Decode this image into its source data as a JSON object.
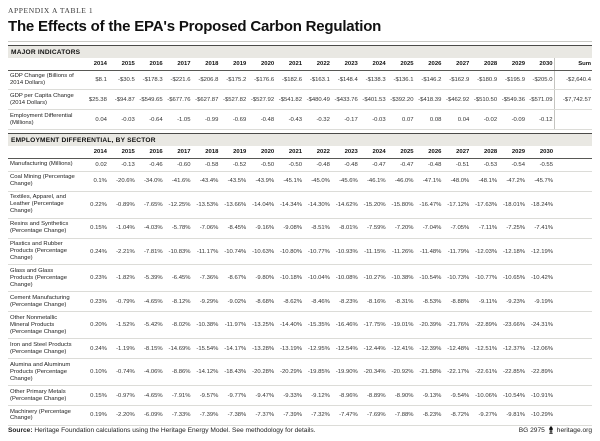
{
  "header": {
    "kicker": "APPENDIX A TABLE 1",
    "title": "The Effects of the EPA's Proposed Carbon Regulation"
  },
  "major_indicators": {
    "section_title": "MAJOR INDICATORS",
    "years": [
      "2014",
      "2015",
      "2016",
      "2017",
      "2018",
      "2019",
      "2020",
      "2021",
      "2022",
      "2023",
      "2024",
      "2025",
      "2026",
      "2027",
      "2028",
      "2029",
      "2030"
    ],
    "sum_label": "Sum",
    "rows": [
      {
        "label": "GDP Change (Billions of 2014 Dollars)",
        "values": [
          "$8.1",
          "-$30.5",
          "-$178.3",
          "-$221.6",
          "-$206.8",
          "-$175.2",
          "-$176.6",
          "-$182.6",
          "-$163.1",
          "-$148.4",
          "-$138.3",
          "-$136.1",
          "-$146.2",
          "-$162.9",
          "-$180.9",
          "-$195.9",
          "-$205.0"
        ],
        "sum": "-$2,640.4"
      },
      {
        "label": "GDP per Capita Change (2014 Dollars)",
        "values": [
          "$25.38",
          "-$94.87",
          "-$549.65",
          "-$677.76",
          "-$627.87",
          "-$527.82",
          "-$527.92",
          "-$541.82",
          "-$480.49",
          "-$433.76",
          "-$401.53",
          "-$392.20",
          "-$418.39",
          "-$462.92",
          "-$510.50",
          "-$549.36",
          "-$571.09"
        ],
        "sum": "-$7,742.57"
      },
      {
        "label": "Employment Differential (Millions)",
        "values": [
          "0.04",
          "-0.03",
          "-0.64",
          "-1.05",
          "-0.99",
          "-0.69",
          "-0.48",
          "-0.43",
          "-0.32",
          "-0.17",
          "-0.03",
          "0.07",
          "0.08",
          "0.04",
          "-0.02",
          "-0.09",
          "-0.12"
        ],
        "sum": ""
      }
    ]
  },
  "sector_section": {
    "section_title": "EMPLOYMENT DIFFERENTIAL, BY SECTOR",
    "years": [
      "2014",
      "2015",
      "2016",
      "2017",
      "2018",
      "2019",
      "2020",
      "2021",
      "2022",
      "2023",
      "2024",
      "2025",
      "2026",
      "2027",
      "2028",
      "2029",
      "2030"
    ],
    "sum_label": "",
    "rows": [
      {
        "label": "Manufacturing (Millions)",
        "values": [
          "0.02",
          "-0.13",
          "-0.46",
          "-0.60",
          "-0.58",
          "-0.52",
          "-0.50",
          "-0.50",
          "-0.48",
          "-0.48",
          "-0.47",
          "-0.47",
          "-0.48",
          "-0.51",
          "-0.53",
          "-0.54",
          "-0.55"
        ]
      },
      {
        "label": "Coal Mining (Percentage Change)",
        "values": [
          "0.1%",
          "-20.6%",
          "-34.0%",
          "-41.6%",
          "-43.4%",
          "-43.5%",
          "-43.9%",
          "-45.1%",
          "-45.0%",
          "-45.6%",
          "-46.1%",
          "-46.0%",
          "-47.1%",
          "-48.0%",
          "-48.1%",
          "-47.2%",
          "-45.7%"
        ]
      },
      {
        "label": "Textiles, Apparel, and Leather (Percentage Change)",
        "values": [
          "0.22%",
          "-0.89%",
          "-7.65%",
          "-12.25%",
          "-13.53%",
          "-13.66%",
          "-14.04%",
          "-14.34%",
          "-14.30%",
          "-14.62%",
          "-15.20%",
          "-15.80%",
          "-16.47%",
          "-17.12%",
          "-17.63%",
          "-18.01%",
          "-18.24%"
        ]
      },
      {
        "label": "Resins and Synthetics (Percentage Change)",
        "values": [
          "0.15%",
          "-1.04%",
          "-4.03%",
          "-5.78%",
          "-7.06%",
          "-8.45%",
          "-9.16%",
          "-9.08%",
          "-8.51%",
          "-8.01%",
          "-7.59%",
          "-7.20%",
          "-7.04%",
          "-7.05%",
          "-7.11%",
          "-7.25%",
          "-7.41%"
        ]
      },
      {
        "label": "Plastics and Rubber Products (Percentage Change)",
        "values": [
          "0.24%",
          "-2.21%",
          "-7.81%",
          "-10.83%",
          "-11.17%",
          "-10.74%",
          "-10.63%",
          "-10.80%",
          "-10.77%",
          "-10.93%",
          "-11.15%",
          "-11.26%",
          "-11.48%",
          "-11.79%",
          "-12.03%",
          "-12.18%",
          "-12.19%"
        ]
      },
      {
        "label": "Glass and Glass Products (Percentage Change)",
        "values": [
          "0.23%",
          "-1.82%",
          "-5.39%",
          "-6.45%",
          "-7.36%",
          "-8.67%",
          "-9.80%",
          "-10.18%",
          "-10.04%",
          "-10.08%",
          "-10.27%",
          "-10.38%",
          "-10.54%",
          "-10.73%",
          "-10.77%",
          "-10.65%",
          "-10.42%"
        ]
      },
      {
        "label": "Cement Manufacturing (Percentage Change)",
        "values": [
          "0.23%",
          "-0.79%",
          "-4.65%",
          "-8.12%",
          "-9.29%",
          "-9.02%",
          "-8.68%",
          "-8.62%",
          "-8.46%",
          "-8.23%",
          "-8.16%",
          "-8.31%",
          "-8.53%",
          "-8.88%",
          "-9.11%",
          "-9.23%",
          "-9.19%"
        ]
      },
      {
        "label": "Other Nonmetallic Mineral Products (Percentage Change)",
        "values": [
          "0.20%",
          "-1.52%",
          "-5.42%",
          "-8.02%",
          "-10.38%",
          "-11.97%",
          "-13.25%",
          "-14.40%",
          "-15.35%",
          "-16.46%",
          "-17.75%",
          "-19.01%",
          "-20.39%",
          "-21.76%",
          "-22.89%",
          "-23.66%",
          "-24.31%"
        ]
      },
      {
        "label": "Iron and Steel Products (Percentage Change)",
        "values": [
          "0.24%",
          "-1.19%",
          "-8.15%",
          "-14.69%",
          "-15.54%",
          "-14.17%",
          "-13.28%",
          "-13.19%",
          "-12.95%",
          "-12.54%",
          "-12.44%",
          "-12.41%",
          "-12.39%",
          "-12.48%",
          "-12.51%",
          "-12.37%",
          "-12.06%"
        ]
      },
      {
        "label": "Alumina and Aluminum Products (Percentage Change)",
        "values": [
          "0.10%",
          "-0.74%",
          "-4.06%",
          "-8.86%",
          "-14.12%",
          "-18.43%",
          "-20.28%",
          "-20.29%",
          "-19.85%",
          "-19.90%",
          "-20.34%",
          "-20.92%",
          "-21.58%",
          "-22.17%",
          "-22.61%",
          "-22.85%",
          "-22.89%"
        ]
      },
      {
        "label": "Other Primary Metals (Percentage Change)",
        "values": [
          "0.15%",
          "-0.97%",
          "-4.65%",
          "-7.91%",
          "-9.57%",
          "-9.77%",
          "-9.47%",
          "-9.33%",
          "-9.12%",
          "-8.96%",
          "-8.89%",
          "-8.90%",
          "-9.13%",
          "-9.54%",
          "-10.06%",
          "-10.54%",
          "-10.91%"
        ]
      },
      {
        "label": "Machinery (Percentage Change)",
        "values": [
          "0.19%",
          "-2.20%",
          "-6.09%",
          "-7.33%",
          "-7.39%",
          "-7.38%",
          "-7.37%",
          "-7.39%",
          "-7.32%",
          "-7.47%",
          "-7.69%",
          "-7.88%",
          "-8.23%",
          "-8.72%",
          "-9.27%",
          "-9.81%",
          "-10.29%"
        ]
      }
    ]
  },
  "footer": {
    "source_label": "Source:",
    "source_text": " Heritage Foundation calculations using the Heritage Energy Model. See methodology for details.",
    "doc_id": "BG 2975",
    "site": "heritage.org"
  }
}
